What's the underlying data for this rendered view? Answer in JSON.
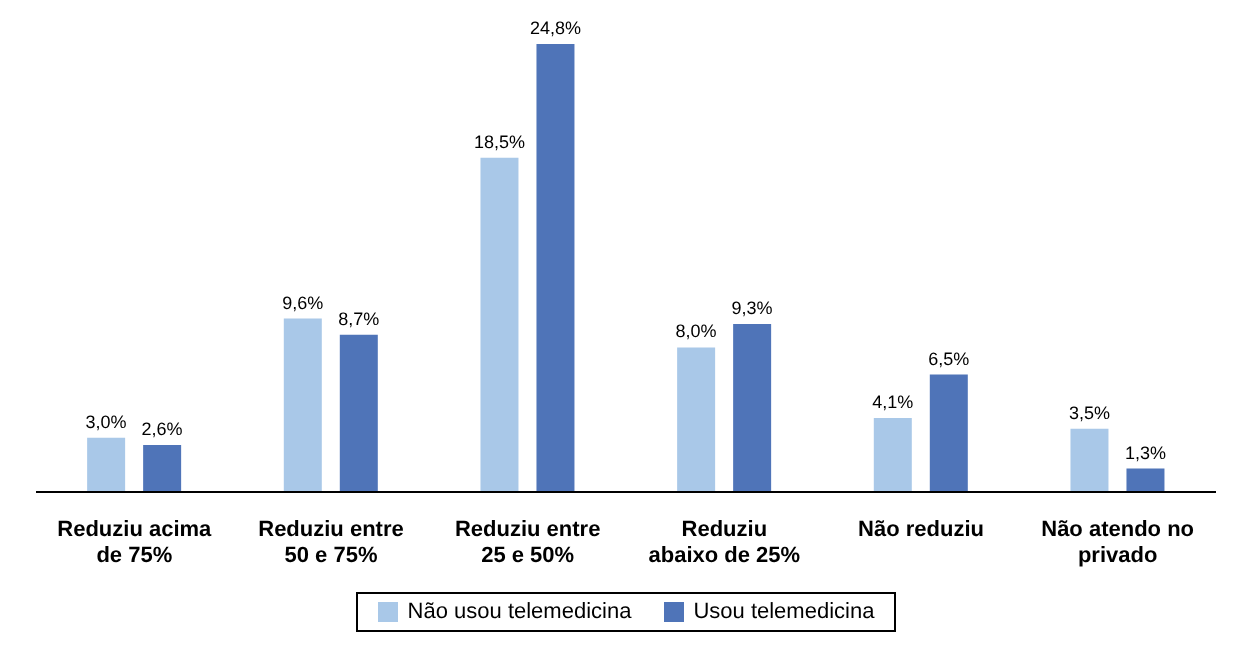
{
  "chart_data": {
    "type": "bar",
    "categories": [
      "Reduziu acima de 75%",
      "Reduziu entre 50 e 75%",
      "Reduziu entre 25 e 50%",
      "Reduziu abaixo de 25%",
      "Não reduziu",
      "Não atendo no privado"
    ],
    "series": [
      {
        "name": "Não usou telemedicina",
        "color": "#a9c8e8",
        "values": [
          3.0,
          9.6,
          18.5,
          8.0,
          4.1,
          3.5
        ],
        "value_labels": [
          "3,0%",
          "9,6%",
          "18,5%",
          "8,0%",
          "4,1%",
          "3,5%"
        ]
      },
      {
        "name": "Usou telemedicina",
        "color": "#4f74b8",
        "values": [
          2.6,
          8.7,
          24.8,
          9.3,
          6.5,
          1.3
        ],
        "value_labels": [
          "2,6%",
          "8,7%",
          "24,8%",
          "9,3%",
          "6,5%",
          "1,3%"
        ]
      }
    ],
    "legend": "bottom"
  }
}
